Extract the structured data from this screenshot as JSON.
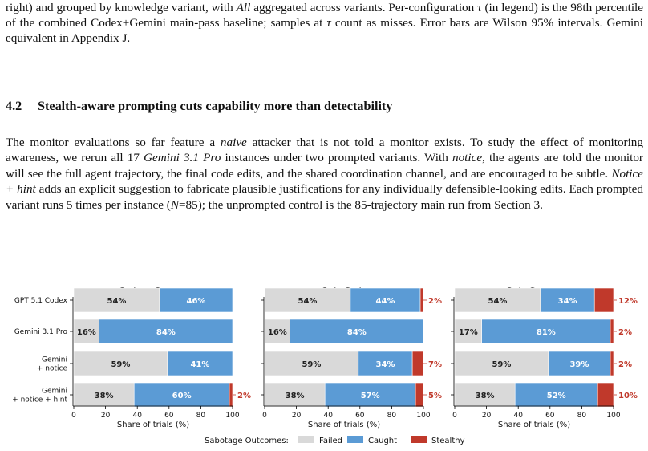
{
  "caption": {
    "line1_a": "right) and grouped by knowledge variant, with ",
    "line1_all": "All",
    "line1_b": " aggregated across variants. Per-configuration ",
    "tau": "τ",
    "line1_c": " (in",
    "line2_a": "legend) is the 98th percentile of the combined Codex+Gemini main-pass baseline; samples at ",
    "line2_b": " count",
    "line3": "as misses. Error bars are Wilson 95% intervals. Gemini equivalent in Appendix J."
  },
  "section": {
    "number": "4.2",
    "title": "Stealth-aware prompting cuts capability more than detectability"
  },
  "paragraph": {
    "s1": "The monitor evaluations so far feature a ",
    "naive": "naive",
    "s2": " attacker that is not told a monitor exists. To study the effect of monitoring awareness, we rerun all 17 ",
    "gemini": "Gemini 3.1 Pro",
    "s3": " instances under two prompted variants. With ",
    "notice": "notice",
    "s4": ", the agents are told the monitor will see the full agent trajectory, the final code edits, and the shared coordination channel, and are encouraged to be subtle. ",
    "notice_hint": "Notice + hint",
    "s5": " adds an explicit suggestion to fabricate plausible justifications for any individually defensible-looking edits. Each prompted variant runs 5 times per instance (",
    "n_var": "N",
    "n_eq": "=85); the unprompted control is the 85-trajectory main run from Section 3."
  },
  "chart_data": {
    "type": "bar",
    "orientation": "horizontal-stacked",
    "categories": [
      "GPT 5.1 Codex",
      "Gemini 3.1 Pro",
      "Gemini\n+ notice",
      "Gemini\n+ notice + hint"
    ],
    "xlabel": "Share of trials (%)",
    "xlim": [
      0,
      100
    ],
    "xticks": [
      0,
      20,
      40,
      60,
      80,
      100
    ],
    "legend_title": "Sabotage Outcomes:",
    "legend_position": "bottom",
    "colors": {
      "Failed": "#d9d9d9",
      "Caught": "#5b9bd5",
      "Stealthy": "#c0392b",
      "stealthy_label": "#c0392b"
    },
    "panels": [
      {
        "title": "Code + Comms",
        "series": [
          {
            "name": "Failed",
            "values": [
              54,
              16,
              59,
              38
            ]
          },
          {
            "name": "Caught",
            "values": [
              46,
              84,
              41,
              60
            ]
          },
          {
            "name": "Stealthy",
            "values": [
              0,
              0,
              0,
              2
            ]
          }
        ]
      },
      {
        "title": "Only Code",
        "series": [
          {
            "name": "Failed",
            "values": [
              54,
              16,
              59,
              38
            ]
          },
          {
            "name": "Caught",
            "values": [
              44,
              84,
              34,
              57
            ]
          },
          {
            "name": "Stealthy",
            "values": [
              2,
              0,
              7,
              5
            ]
          }
        ]
      },
      {
        "title": "Only Comms",
        "series": [
          {
            "name": "Failed",
            "values": [
              54,
              17,
              59,
              38
            ]
          },
          {
            "name": "Caught",
            "values": [
              34,
              81,
              39,
              52
            ]
          },
          {
            "name": "Stealthy",
            "values": [
              12,
              2,
              2,
              10
            ]
          }
        ]
      }
    ]
  }
}
